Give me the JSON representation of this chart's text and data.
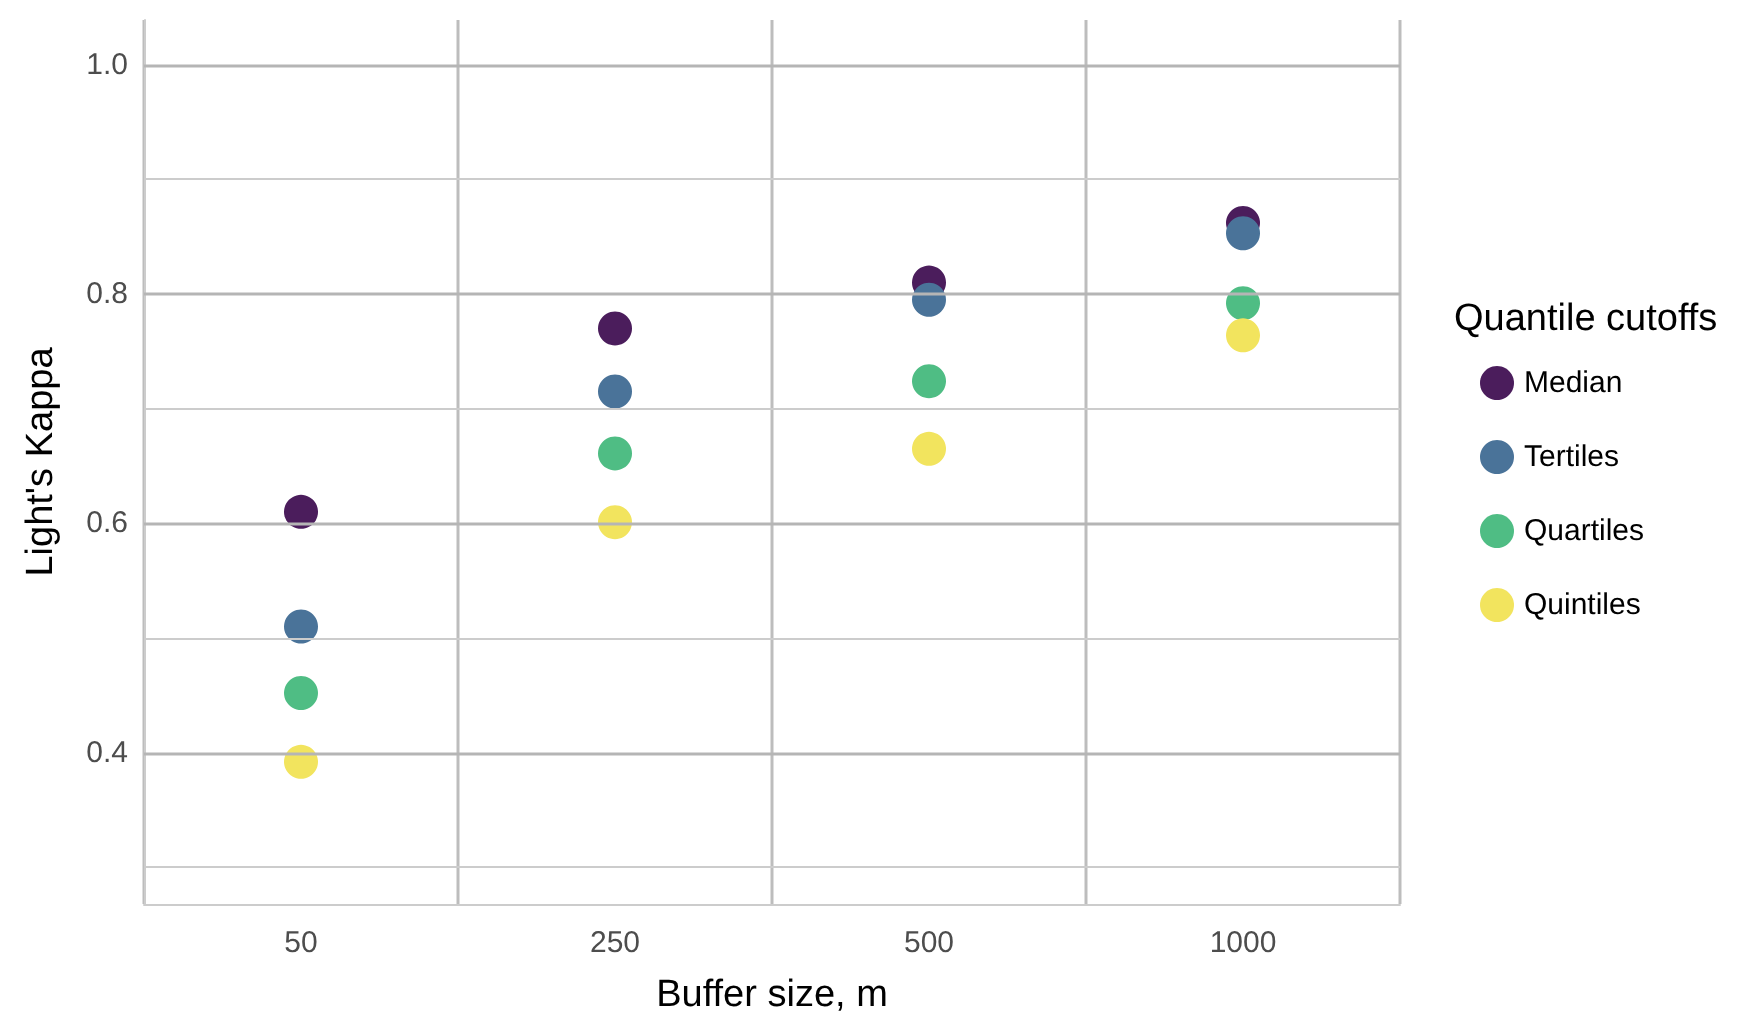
{
  "chart_data": {
    "type": "scatter",
    "xlabel": "Buffer size, m",
    "ylabel": "Light's Kappa",
    "legend_title": "Quantile cutoffs",
    "categories": [
      "50",
      "250",
      "500",
      "1000"
    ],
    "series": [
      {
        "name": "Median",
        "color": "#4b1d5c",
        "values": [
          0.61,
          0.77,
          0.81,
          0.862
        ]
      },
      {
        "name": "Tertiles",
        "color": "#4a7399",
        "values": [
          0.51,
          0.715,
          0.795,
          0.853
        ]
      },
      {
        "name": "Quartiles",
        "color": "#4fbd84",
        "values": [
          0.452,
          0.661,
          0.724,
          0.792
        ]
      },
      {
        "name": "Quintiles",
        "color": "#f2e45e",
        "values": [
          0.392,
          0.601,
          0.665,
          0.764
        ]
      }
    ],
    "ylim": [
      0.268,
      1.039
    ],
    "yticks": [
      {
        "value": 0.3,
        "label": null
      },
      0.4,
      {
        "value": 0.5,
        "label": null
      },
      0.6,
      {
        "value": 0.7,
        "label": null
      },
      0.8,
      {
        "value": 0.9,
        "label": null
      },
      {
        "value": 1,
        "label": "1.0"
      }
    ],
    "grid": true,
    "legend": "right",
    "marker": "circle"
  }
}
